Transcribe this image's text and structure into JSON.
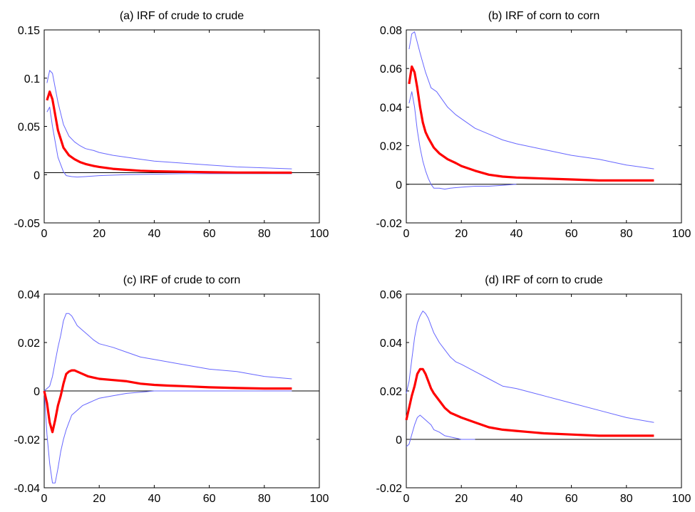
{
  "colors": {
    "irf": "#ff0000",
    "bands": "#6666ff",
    "zero_line": "#000000"
  },
  "chart_data": [
    {
      "type": "line",
      "title": "(a) IRF of crude to crude",
      "xlabel": "",
      "ylabel": "",
      "xlim": [
        0,
        100
      ],
      "ylim": [
        -0.05,
        0.15
      ],
      "xticks": [
        0,
        20,
        40,
        60,
        80,
        100
      ],
      "xtick_labels": [
        "0",
        "20",
        "40",
        "60",
        "80",
        "100"
      ],
      "yticks": [
        -0.05,
        0,
        0.05,
        0.1,
        0.15
      ],
      "ytick_labels": [
        "-0.05",
        "0",
        "0.05",
        "0.1",
        "0.15"
      ],
      "zero_line": [
        0,
        90,
        0.002
      ],
      "series": [
        {
          "role": "irf",
          "x": [
            1,
            2,
            3,
            5,
            7,
            9,
            11,
            13,
            15,
            18,
            20,
            25,
            30,
            35,
            40,
            50,
            60,
            70,
            80,
            90
          ],
          "values": [
            0.077,
            0.086,
            0.078,
            0.046,
            0.028,
            0.02,
            0.016,
            0.013,
            0.011,
            0.009,
            0.008,
            0.006,
            0.005,
            0.004,
            0.0035,
            0.003,
            0.0025,
            0.0022,
            0.0021,
            0.002
          ]
        },
        {
          "role": "upper",
          "x": [
            1,
            2,
            3,
            5,
            7,
            9,
            11,
            13,
            15,
            18,
            20,
            25,
            30,
            35,
            40,
            50,
            60,
            70,
            80,
            90
          ],
          "values": [
            0.095,
            0.108,
            0.105,
            0.075,
            0.052,
            0.04,
            0.034,
            0.03,
            0.027,
            0.025,
            0.023,
            0.02,
            0.018,
            0.016,
            0.014,
            0.012,
            0.01,
            0.008,
            0.007,
            0.006
          ]
        },
        {
          "role": "lower",
          "x": [
            1,
            2,
            3,
            5,
            7,
            8,
            10,
            12,
            15,
            20,
            30,
            40,
            50,
            60,
            70,
            80,
            90
          ],
          "values": [
            0.065,
            0.07,
            0.05,
            0.018,
            0.003,
            -0.001,
            -0.002,
            -0.0025,
            -0.002,
            -0.001,
            0.0,
            0.0005,
            0.001,
            0.001,
            0.001,
            0.001,
            0.001
          ]
        }
      ]
    },
    {
      "type": "line",
      "title": "(b) IRF of corn to corn",
      "xlabel": "",
      "ylabel": "",
      "xlim": [
        0,
        100
      ],
      "ylim": [
        -0.02,
        0.08
      ],
      "xticks": [
        0,
        20,
        40,
        60,
        80,
        100
      ],
      "xtick_labels": [
        "0",
        "20",
        "40",
        "60",
        "80",
        "100"
      ],
      "yticks": [
        -0.02,
        0,
        0.02,
        0.04,
        0.06,
        0.08
      ],
      "ytick_labels": [
        "-0.02",
        "0",
        "0.02",
        "0.04",
        "0.06",
        "0.08"
      ],
      "zero_line": [
        0,
        90,
        0.0
      ],
      "series": [
        {
          "role": "irf",
          "x": [
            1,
            2,
            3,
            4,
            5,
            6,
            7,
            8,
            10,
            12,
            15,
            18,
            20,
            25,
            30,
            35,
            40,
            50,
            60,
            70,
            80,
            90
          ],
          "values": [
            0.052,
            0.061,
            0.058,
            0.05,
            0.04,
            0.032,
            0.027,
            0.024,
            0.019,
            0.016,
            0.013,
            0.011,
            0.0095,
            0.007,
            0.005,
            0.004,
            0.0035,
            0.003,
            0.0025,
            0.002,
            0.002,
            0.002
          ]
        },
        {
          "role": "upper",
          "x": [
            1,
            2,
            3,
            5,
            7,
            9,
            11,
            13,
            15,
            18,
            20,
            25,
            30,
            35,
            40,
            50,
            60,
            70,
            80,
            90
          ],
          "values": [
            0.07,
            0.078,
            0.079,
            0.068,
            0.058,
            0.05,
            0.048,
            0.044,
            0.04,
            0.036,
            0.034,
            0.029,
            0.026,
            0.023,
            0.021,
            0.018,
            0.015,
            0.013,
            0.01,
            0.008
          ]
        },
        {
          "role": "lower",
          "x": [
            1,
            2,
            3,
            4,
            5,
            6,
            7,
            8,
            9,
            10,
            12,
            14,
            16,
            20,
            25,
            30,
            35,
            40
          ],
          "values": [
            0.042,
            0.048,
            0.04,
            0.028,
            0.019,
            0.012,
            0.007,
            0.003,
            0.0,
            -0.002,
            -0.002,
            -0.0025,
            -0.002,
            -0.0015,
            -0.001,
            -0.001,
            -0.0005,
            0.0
          ]
        }
      ]
    },
    {
      "type": "line",
      "title": "(c) IRF of crude to corn",
      "xlabel": "",
      "ylabel": "",
      "xlim": [
        0,
        100
      ],
      "ylim": [
        -0.04,
        0.04
      ],
      "xticks": [
        0,
        20,
        40,
        60,
        80,
        100
      ],
      "xtick_labels": [
        "0",
        "20",
        "40",
        "60",
        "80",
        "100"
      ],
      "yticks": [
        -0.04,
        -0.02,
        0,
        0.02,
        0.04
      ],
      "ytick_labels": [
        "-0.04",
        "-0.02",
        "0",
        "0.02",
        "0.04"
      ],
      "zero_line": [
        0,
        90,
        0.0
      ],
      "series": [
        {
          "role": "irf",
          "x": [
            0,
            1,
            2,
            3,
            4,
            5,
            6,
            7,
            8,
            9,
            10,
            11,
            12,
            14,
            16,
            18,
            20,
            25,
            30,
            35,
            40,
            45,
            50,
            60,
            70,
            80,
            90
          ],
          "values": [
            0.0,
            -0.005,
            -0.013,
            -0.017,
            -0.012,
            -0.006,
            -0.002,
            0.003,
            0.007,
            0.008,
            0.0085,
            0.0085,
            0.008,
            0.007,
            0.006,
            0.0055,
            0.005,
            0.0045,
            0.004,
            0.003,
            0.0025,
            0.0022,
            0.002,
            0.0015,
            0.0012,
            0.001,
            0.001
          ]
        },
        {
          "role": "upper",
          "x": [
            0,
            2,
            3,
            4,
            5,
            6,
            7,
            8,
            9,
            10,
            11,
            12,
            14,
            16,
            18,
            20,
            25,
            30,
            35,
            40,
            50,
            60,
            70,
            80,
            90
          ],
          "values": [
            0.0,
            0.002,
            0.006,
            0.012,
            0.018,
            0.023,
            0.029,
            0.032,
            0.032,
            0.031,
            0.029,
            0.027,
            0.025,
            0.023,
            0.021,
            0.0195,
            0.018,
            0.016,
            0.014,
            0.013,
            0.011,
            0.009,
            0.008,
            0.006,
            0.005
          ]
        },
        {
          "role": "lower",
          "x": [
            0,
            1,
            2,
            3,
            4,
            5,
            6,
            7,
            8,
            9,
            10,
            12,
            14,
            16,
            18,
            20,
            25,
            30,
            35,
            40,
            50,
            60,
            70,
            80,
            90
          ],
          "values": [
            0.0,
            -0.018,
            -0.03,
            -0.038,
            -0.038,
            -0.032,
            -0.025,
            -0.02,
            -0.016,
            -0.013,
            -0.01,
            -0.008,
            -0.006,
            -0.005,
            -0.004,
            -0.003,
            -0.002,
            -0.001,
            -0.0005,
            0.0,
            0.0,
            0.0,
            0.0,
            0.0,
            0.0
          ]
        }
      ]
    },
    {
      "type": "line",
      "title": "(d) IRF of corn to crude",
      "xlabel": "",
      "ylabel": "",
      "xlim": [
        0,
        100
      ],
      "ylim": [
        -0.02,
        0.06
      ],
      "xticks": [
        0,
        20,
        40,
        60,
        80,
        100
      ],
      "xtick_labels": [
        "0",
        "20",
        "40",
        "60",
        "80",
        "100"
      ],
      "yticks": [
        -0.02,
        0,
        0.02,
        0.04,
        0.06
      ],
      "ytick_labels": [
        "-0.02",
        "0",
        "0.02",
        "0.04",
        "0.06"
      ],
      "zero_line": [
        0,
        90,
        0.0
      ],
      "series": [
        {
          "role": "irf",
          "x": [
            0,
            1,
            2,
            3,
            4,
            5,
            6,
            7,
            8,
            9,
            10,
            12,
            14,
            16,
            18,
            20,
            25,
            30,
            35,
            40,
            45,
            50,
            60,
            70,
            80,
            90
          ],
          "values": [
            0.008,
            0.013,
            0.018,
            0.022,
            0.027,
            0.029,
            0.029,
            0.027,
            0.024,
            0.021,
            0.019,
            0.016,
            0.013,
            0.011,
            0.01,
            0.009,
            0.007,
            0.005,
            0.004,
            0.0035,
            0.003,
            0.0025,
            0.002,
            0.0015,
            0.0015,
            0.0015
          ]
        },
        {
          "role": "upper",
          "x": [
            0,
            1,
            2,
            3,
            4,
            5,
            6,
            7,
            8,
            9,
            10,
            12,
            14,
            16,
            18,
            20,
            25,
            30,
            35,
            40,
            50,
            60,
            70,
            80,
            90
          ],
          "values": [
            0.019,
            0.024,
            0.033,
            0.042,
            0.048,
            0.051,
            0.053,
            0.052,
            0.05,
            0.047,
            0.044,
            0.04,
            0.037,
            0.034,
            0.032,
            0.031,
            0.028,
            0.025,
            0.022,
            0.021,
            0.018,
            0.015,
            0.012,
            0.009,
            0.007
          ]
        },
        {
          "role": "lower",
          "x": [
            0,
            1,
            2,
            3,
            4,
            5,
            6,
            7,
            8,
            9,
            10,
            12,
            14,
            16,
            18,
            20,
            22,
            25
          ],
          "values": [
            -0.003,
            -0.002,
            0.002,
            0.006,
            0.009,
            0.01,
            0.009,
            0.008,
            0.007,
            0.006,
            0.004,
            0.003,
            0.0015,
            0.001,
            0.0005,
            0.0,
            0.0,
            0.0
          ]
        }
      ]
    }
  ]
}
